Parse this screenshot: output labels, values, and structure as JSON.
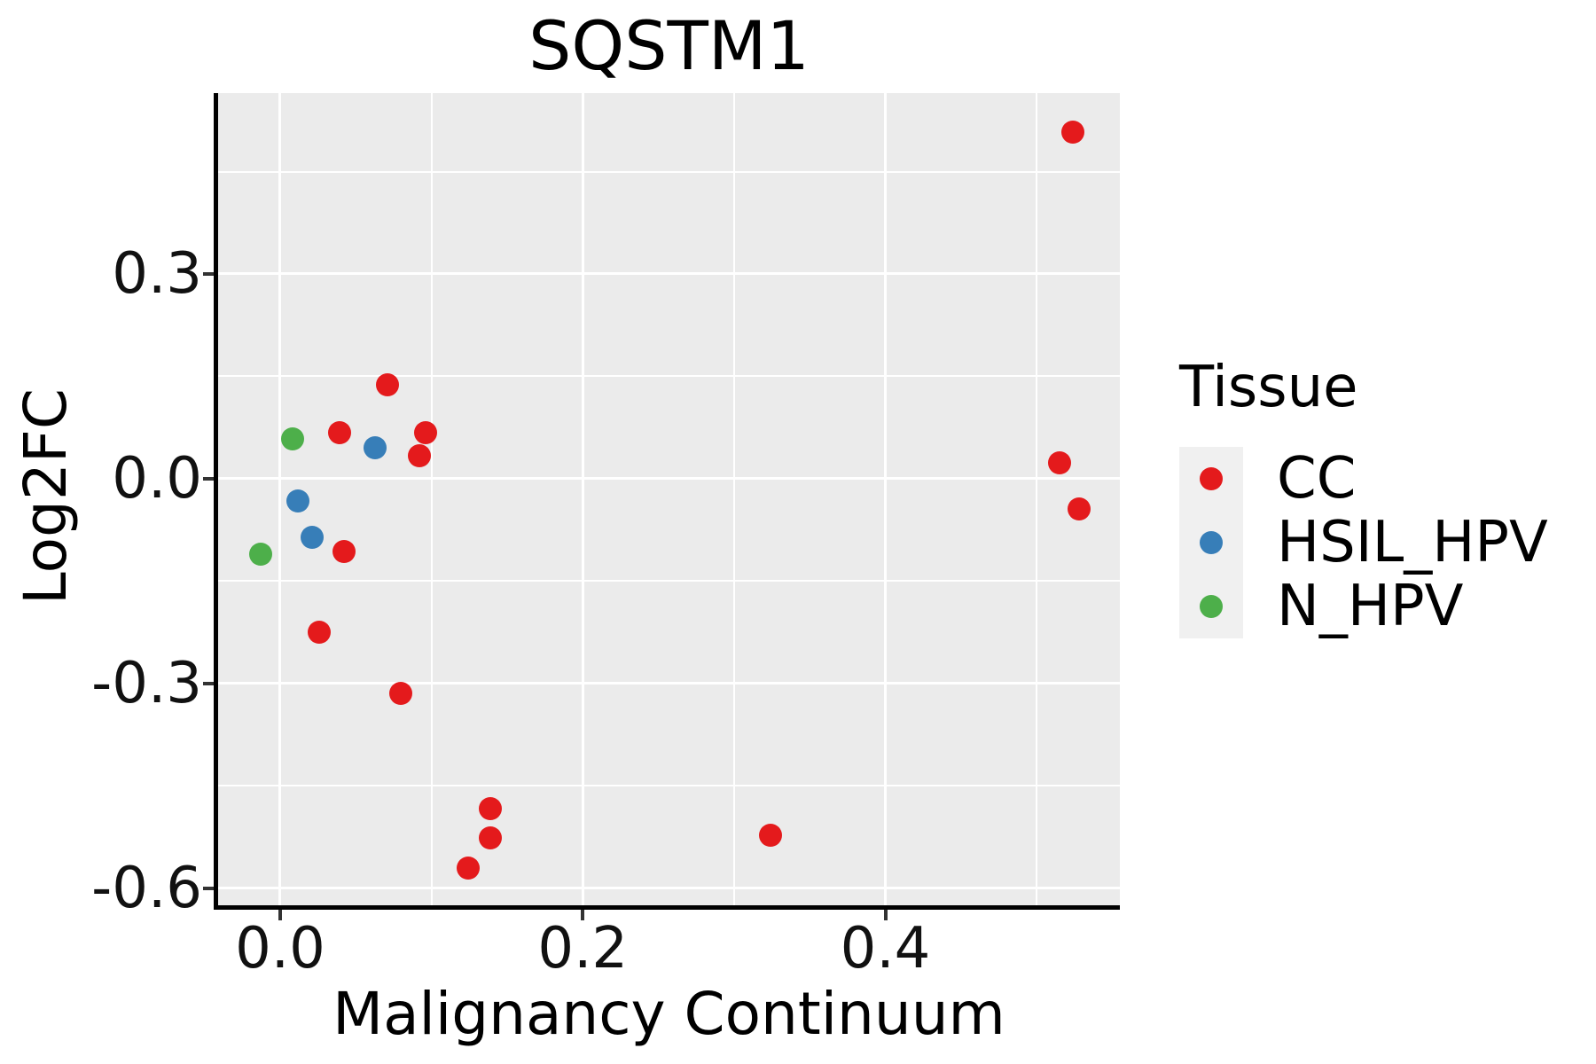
{
  "chart_data": {
    "type": "scatter",
    "title": "SQSTM1",
    "xlabel": "Malignancy Continuum",
    "ylabel": "Log2FC",
    "legend_title": "Tissue",
    "legend_position": "right",
    "grid": true,
    "x_ticks": {
      "values": [
        0,
        0.2,
        0.4
      ],
      "labels": [
        "0.0",
        "0.2",
        "0.4"
      ]
    },
    "x_minor_gridlines": [
      0.1,
      0.3,
      0.5
    ],
    "y_ticks": {
      "values": [
        0.3,
        0,
        -0.3,
        -0.6
      ],
      "labels": [
        "0.3",
        "0.0",
        "-0.3",
        "-0.6"
      ]
    },
    "y_minor_gridlines": [
      0.45,
      0.15,
      -0.15,
      -0.45
    ],
    "xlim": [
      -0.041,
      0.555
    ],
    "ylim": [
      -0.625,
      0.565
    ],
    "series": [
      {
        "name": "CC",
        "color": "#E41A1C",
        "points": [
          [
            0.071,
            0.138
          ],
          [
            0.039,
            0.068
          ],
          [
            0.096,
            0.068
          ],
          [
            0.092,
            0.034
          ],
          [
            0.042,
            -0.106
          ],
          [
            0.026,
            -0.225
          ],
          [
            0.08,
            -0.314
          ],
          [
            0.139,
            -0.484
          ],
          [
            0.139,
            -0.526
          ],
          [
            0.124,
            -0.571
          ],
          [
            0.324,
            -0.522
          ],
          [
            0.524,
            0.508
          ],
          [
            0.515,
            0.023
          ],
          [
            0.528,
            -0.044
          ]
        ]
      },
      {
        "name": "HSIL_HPV",
        "color": "#377EB8",
        "points": [
          [
            0.063,
            0.045
          ],
          [
            0.012,
            -0.032
          ],
          [
            0.021,
            -0.086
          ]
        ]
      },
      {
        "name": "N_HPV",
        "color": "#4DAF4A",
        "points": [
          [
            0.008,
            0.058
          ],
          [
            -0.013,
            -0.11
          ]
        ]
      }
    ]
  },
  "style": {
    "panel_bg": "#EBEBEB",
    "gridline_color": "#FFFFFF",
    "legend_key_bg": "#F0F0F0",
    "axis_line_color": "#000000",
    "tick_color": "#333333"
  }
}
